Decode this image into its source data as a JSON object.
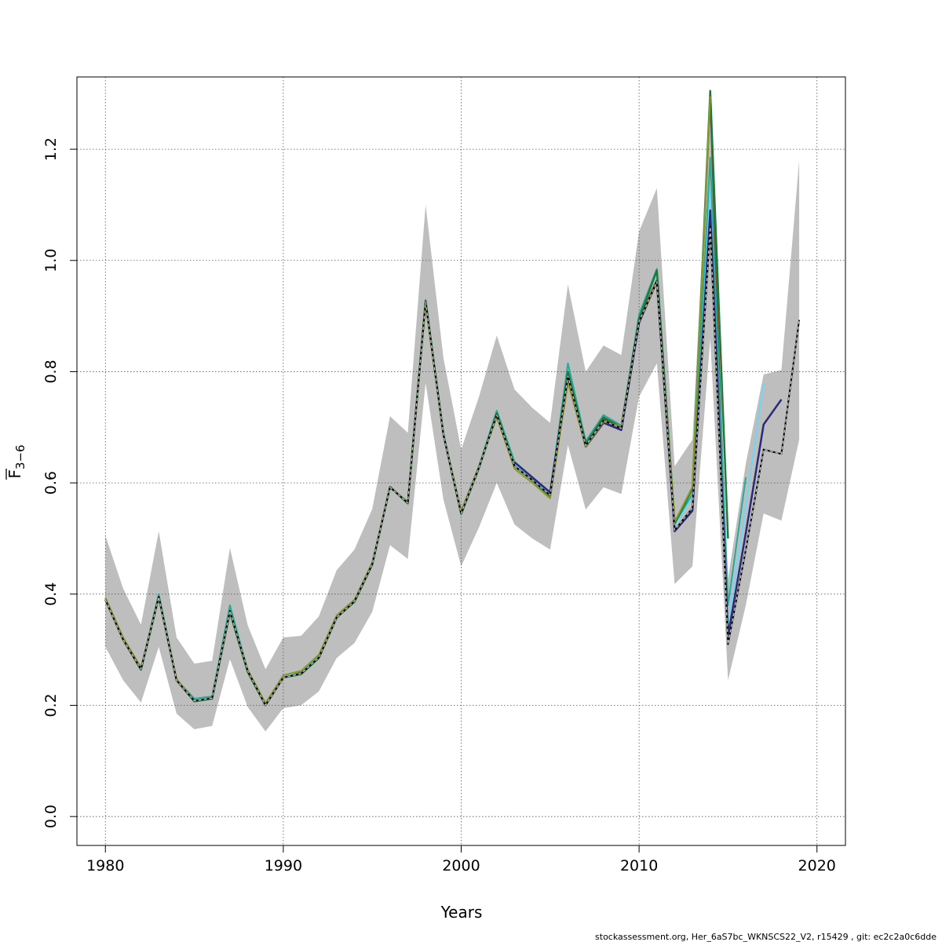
{
  "chart_data": {
    "type": "line",
    "xlabel": "Years",
    "ylabel_main": "F",
    "ylabel_sub": "3−6",
    "xlim": [
      1978.4,
      2021.6
    ],
    "ylim": [
      -0.052,
      1.33
    ],
    "x_ticks": [
      1980,
      1990,
      2000,
      2010,
      2020
    ],
    "y_ticks": [
      0.0,
      0.2,
      0.4,
      0.6,
      0.8,
      1.0,
      1.2
    ],
    "y_tick_labels": [
      "0.0",
      "0.2",
      "0.4",
      "0.6",
      "0.8",
      "1.0",
      "1.2"
    ],
    "grid": true,
    "footer": "stockassessment.org, Her_6aS7bc_WKNSCS22_V2, r15429 , git: ec2c2a0c6dde",
    "band_color": "#bebebe",
    "band": {
      "x": [
        1980,
        1981,
        1982,
        1983,
        1984,
        1985,
        1986,
        1987,
        1988,
        1989,
        1990,
        1991,
        1992,
        1993,
        1994,
        1995,
        1996,
        1997,
        1998,
        1999,
        2000,
        2001,
        2002,
        2003,
        2004,
        2005,
        2006,
        2007,
        2008,
        2009,
        2010,
        2011,
        2012,
        2013,
        2014,
        2015,
        2016,
        2017,
        2018,
        2019
      ],
      "lower": [
        0.305,
        0.245,
        0.205,
        0.305,
        0.185,
        0.157,
        0.163,
        0.283,
        0.197,
        0.153,
        0.195,
        0.2,
        0.225,
        0.285,
        0.312,
        0.368,
        0.488,
        0.463,
        0.78,
        0.57,
        0.45,
        0.52,
        0.6,
        0.525,
        0.5,
        0.48,
        0.668,
        0.552,
        0.592,
        0.58,
        0.755,
        0.815,
        0.418,
        0.45,
        0.86,
        0.245,
        0.38,
        0.545,
        0.532,
        0.678
      ],
      "upper": [
        0.505,
        0.41,
        0.345,
        0.513,
        0.322,
        0.275,
        0.28,
        0.483,
        0.344,
        0.265,
        0.322,
        0.325,
        0.36,
        0.443,
        0.48,
        0.553,
        0.72,
        0.69,
        1.1,
        0.825,
        0.66,
        0.755,
        0.865,
        0.768,
        0.735,
        0.708,
        0.957,
        0.8,
        0.847,
        0.83,
        1.052,
        1.13,
        0.63,
        0.678,
        1.29,
        0.428,
        0.635,
        0.795,
        0.803,
        1.18
      ]
    },
    "series": [
      {
        "color": "#7d4b23",
        "width": 2,
        "dash": "",
        "x": [
          1980,
          1981,
          1982,
          1983,
          1984,
          1985,
          1986,
          1987,
          1988,
          1989,
          1990,
          1991,
          1992,
          1993,
          1994,
          1995,
          1996,
          1997,
          1998,
          1999,
          2000,
          2001,
          2002,
          2003,
          2004,
          2005,
          2006,
          2007,
          2008,
          2009,
          2010,
          2011,
          2012,
          2013,
          2014,
          2015
        ],
        "y": [
          0.392,
          0.32,
          0.266,
          0.398,
          0.246,
          0.208,
          0.213,
          0.37,
          0.262,
          0.202,
          0.252,
          0.26,
          0.29,
          0.36,
          0.388,
          0.455,
          0.592,
          0.565,
          0.928,
          0.688,
          0.548,
          0.63,
          0.722,
          0.63,
          0.605,
          0.577,
          0.796,
          0.668,
          0.715,
          0.7,
          0.893,
          0.965,
          0.525,
          0.59,
          1.29,
          0.33
        ]
      },
      {
        "color": "#74d4f4",
        "width": 2,
        "dash": "",
        "x": [
          1980,
          1981,
          1982,
          1983,
          1984,
          1985,
          1986,
          1987,
          1988,
          1989,
          1990,
          1991,
          1992,
          1993,
          1994,
          1995,
          1996,
          1997,
          1998,
          1999,
          2000,
          2001,
          2002,
          2003,
          2004,
          2005,
          2006,
          2007,
          2008,
          2009,
          2010,
          2011,
          2012,
          2013,
          2014,
          2015,
          2016,
          2017
        ],
        "y": [
          0.39,
          0.318,
          0.265,
          0.397,
          0.245,
          0.211,
          0.215,
          0.377,
          0.26,
          0.2,
          0.252,
          0.258,
          0.288,
          0.358,
          0.386,
          0.453,
          0.592,
          0.564,
          0.925,
          0.686,
          0.546,
          0.628,
          0.726,
          0.635,
          0.608,
          0.58,
          0.805,
          0.672,
          0.72,
          0.7,
          0.9,
          0.978,
          0.522,
          0.575,
          1.13,
          0.345,
          0.56,
          0.78
        ]
      },
      {
        "color": "#2aa898",
        "width": 2,
        "dash": "",
        "x": [
          1980,
          1981,
          1982,
          1983,
          1984,
          1985,
          1986,
          1987,
          1988,
          1989,
          1990,
          1991,
          1992,
          1993,
          1994,
          1995,
          1996,
          1997,
          1998,
          1999,
          2000,
          2001,
          2002,
          2003,
          2004,
          2005,
          2006,
          2007,
          2008,
          2009,
          2010,
          2011,
          2012,
          2013,
          2014,
          2015,
          2016
        ],
        "y": [
          0.392,
          0.32,
          0.265,
          0.4,
          0.246,
          0.212,
          0.216,
          0.38,
          0.262,
          0.202,
          0.25,
          0.258,
          0.287,
          0.357,
          0.387,
          0.454,
          0.592,
          0.566,
          0.927,
          0.69,
          0.545,
          0.63,
          0.73,
          0.638,
          0.61,
          0.583,
          0.815,
          0.675,
          0.722,
          0.703,
          0.903,
          0.985,
          0.527,
          0.58,
          1.185,
          0.38,
          0.61
        ]
      },
      {
        "color": "#1e7a3c",
        "width": 2.5,
        "dash": "",
        "x": [
          1980,
          1981,
          1982,
          1983,
          1984,
          1985,
          1986,
          1987,
          1988,
          1989,
          1990,
          1991,
          1992,
          1993,
          1994,
          1995,
          1996,
          1997,
          1998,
          1999,
          2000,
          2001,
          2002,
          2003,
          2004,
          2005,
          2006,
          2007,
          2008,
          2009,
          2010,
          2011,
          2012,
          2013,
          2014,
          2015
        ],
        "y": [
          0.39,
          0.318,
          0.264,
          0.395,
          0.245,
          0.207,
          0.212,
          0.367,
          0.26,
          0.2,
          0.25,
          0.256,
          0.285,
          0.358,
          0.386,
          0.453,
          0.593,
          0.563,
          0.928,
          0.687,
          0.544,
          0.627,
          0.725,
          0.63,
          0.605,
          0.576,
          0.8,
          0.67,
          0.718,
          0.7,
          0.895,
          0.982,
          0.527,
          0.59,
          1.305,
          0.5
        ]
      },
      {
        "color": "#2a2a7a",
        "width": 2.5,
        "dash": "",
        "x": [
          2003,
          2004,
          2005,
          2006,
          2007,
          2008,
          2009,
          2010,
          2011,
          2012,
          2013,
          2014,
          2015,
          2016,
          2017,
          2018
        ],
        "y": [
          0.637,
          0.61,
          0.583,
          0.79,
          0.665,
          0.708,
          0.695,
          0.888,
          0.962,
          0.513,
          0.55,
          1.09,
          0.325,
          0.51,
          0.705,
          0.75
        ]
      },
      {
        "color": "#8c9a2a",
        "width": 2,
        "dash": "",
        "x": [
          1980,
          1981,
          1982,
          1983,
          1984,
          1985,
          1986,
          1987,
          1988,
          1989,
          1990,
          1991,
          1992,
          1993,
          1994,
          1995,
          1996,
          1997,
          1998,
          1999,
          2000,
          2001,
          2002,
          2003,
          2004,
          2005,
          2006,
          2007,
          2008,
          2009,
          2010,
          2011,
          2012,
          2013,
          2014
        ],
        "y": [
          0.394,
          0.322,
          0.268,
          0.393,
          0.248,
          0.208,
          0.213,
          0.368,
          0.264,
          0.204,
          0.254,
          0.262,
          0.291,
          0.362,
          0.39,
          0.457,
          0.592,
          0.565,
          0.92,
          0.687,
          0.55,
          0.63,
          0.718,
          0.625,
          0.6,
          0.572,
          0.78,
          0.665,
          0.71,
          0.702,
          0.89,
          0.96,
          0.53,
          0.593,
          1.295
        ]
      },
      {
        "color": "#000000",
        "width": 2,
        "dash": "",
        "x": [
          1980,
          1981,
          1982,
          1983,
          1984,
          1985,
          1986,
          1987,
          1988,
          1989,
          1990,
          1991,
          1992,
          1993,
          1994,
          1995,
          1996,
          1997,
          1998,
          1999,
          2000,
          2001,
          2002,
          2003,
          2004,
          2005,
          2006,
          2007,
          2008,
          2009,
          2010,
          2011,
          2012,
          2013,
          2014,
          2015,
          2016,
          2017,
          2018,
          2019
        ],
        "y": [
          0.39,
          0.318,
          0.265,
          0.395,
          0.245,
          0.208,
          0.213,
          0.37,
          0.262,
          0.2,
          0.25,
          0.257,
          0.286,
          0.358,
          0.387,
          0.454,
          0.592,
          0.564,
          0.925,
          0.687,
          0.545,
          0.628,
          0.722,
          0.63,
          0.605,
          0.578,
          0.792,
          0.667,
          0.712,
          0.698,
          0.89,
          0.962,
          0.515,
          0.555,
          1.06,
          0.31,
          0.48,
          0.66,
          0.652,
          0.893
        ]
      },
      {
        "color": "#bbbbbb",
        "width": 1.4,
        "dash": "4,3",
        "x": [
          1980,
          1981,
          1982,
          1983,
          1984,
          1985,
          1986,
          1987,
          1988,
          1989,
          1990,
          1991,
          1992,
          1993,
          1994,
          1995,
          1996,
          1997,
          1998,
          1999,
          2000,
          2001,
          2002,
          2003,
          2004,
          2005,
          2006,
          2007,
          2008,
          2009,
          2010,
          2011,
          2012,
          2013,
          2014,
          2015,
          2016,
          2017,
          2018,
          2019
        ],
        "y": [
          0.39,
          0.318,
          0.265,
          0.395,
          0.245,
          0.208,
          0.213,
          0.37,
          0.262,
          0.2,
          0.25,
          0.257,
          0.286,
          0.358,
          0.387,
          0.454,
          0.592,
          0.564,
          0.925,
          0.687,
          0.545,
          0.628,
          0.722,
          0.63,
          0.605,
          0.578,
          0.792,
          0.667,
          0.712,
          0.698,
          0.89,
          0.962,
          0.515,
          0.555,
          1.06,
          0.31,
          0.48,
          0.66,
          0.652,
          0.893
        ]
      }
    ]
  }
}
